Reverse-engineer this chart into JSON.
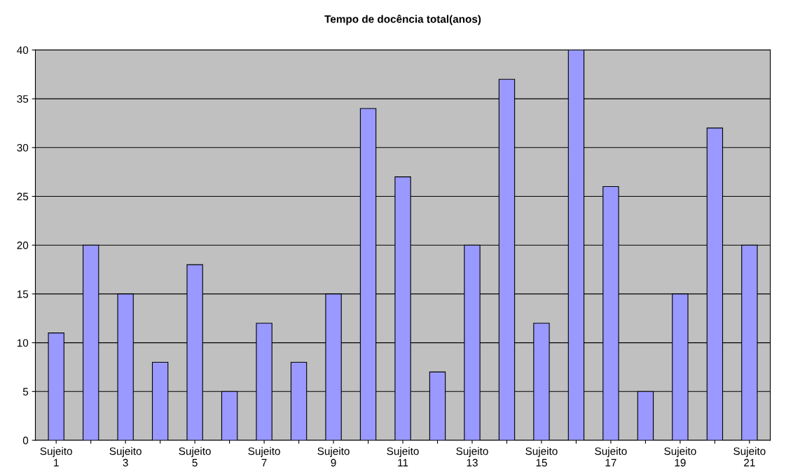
{
  "chart_data": {
    "type": "bar",
    "title": "Tempo de docência total(anos)",
    "categories": [
      "Sujeito\n1",
      null,
      "Sujeito\n3",
      null,
      "Sujeito\n5",
      null,
      "Sujeito\n7",
      null,
      "Sujeito\n9",
      null,
      "Sujeito\n11",
      null,
      "Sujeito\n13",
      null,
      "Sujeito\n15",
      null,
      "Sujeito\n17",
      null,
      "Sujeito\n19",
      null,
      "Sujeito\n21"
    ],
    "values": [
      11,
      20,
      15,
      8,
      18,
      5,
      12,
      8,
      15,
      34,
      27,
      7,
      20,
      37,
      12,
      40,
      26,
      5,
      15,
      32,
      20
    ],
    "color": "#9999ff",
    "ylim": [
      0,
      40
    ],
    "yticks": [
      0,
      5,
      10,
      15,
      20,
      25,
      30,
      35,
      40
    ],
    "grid": "y",
    "legend": false
  }
}
